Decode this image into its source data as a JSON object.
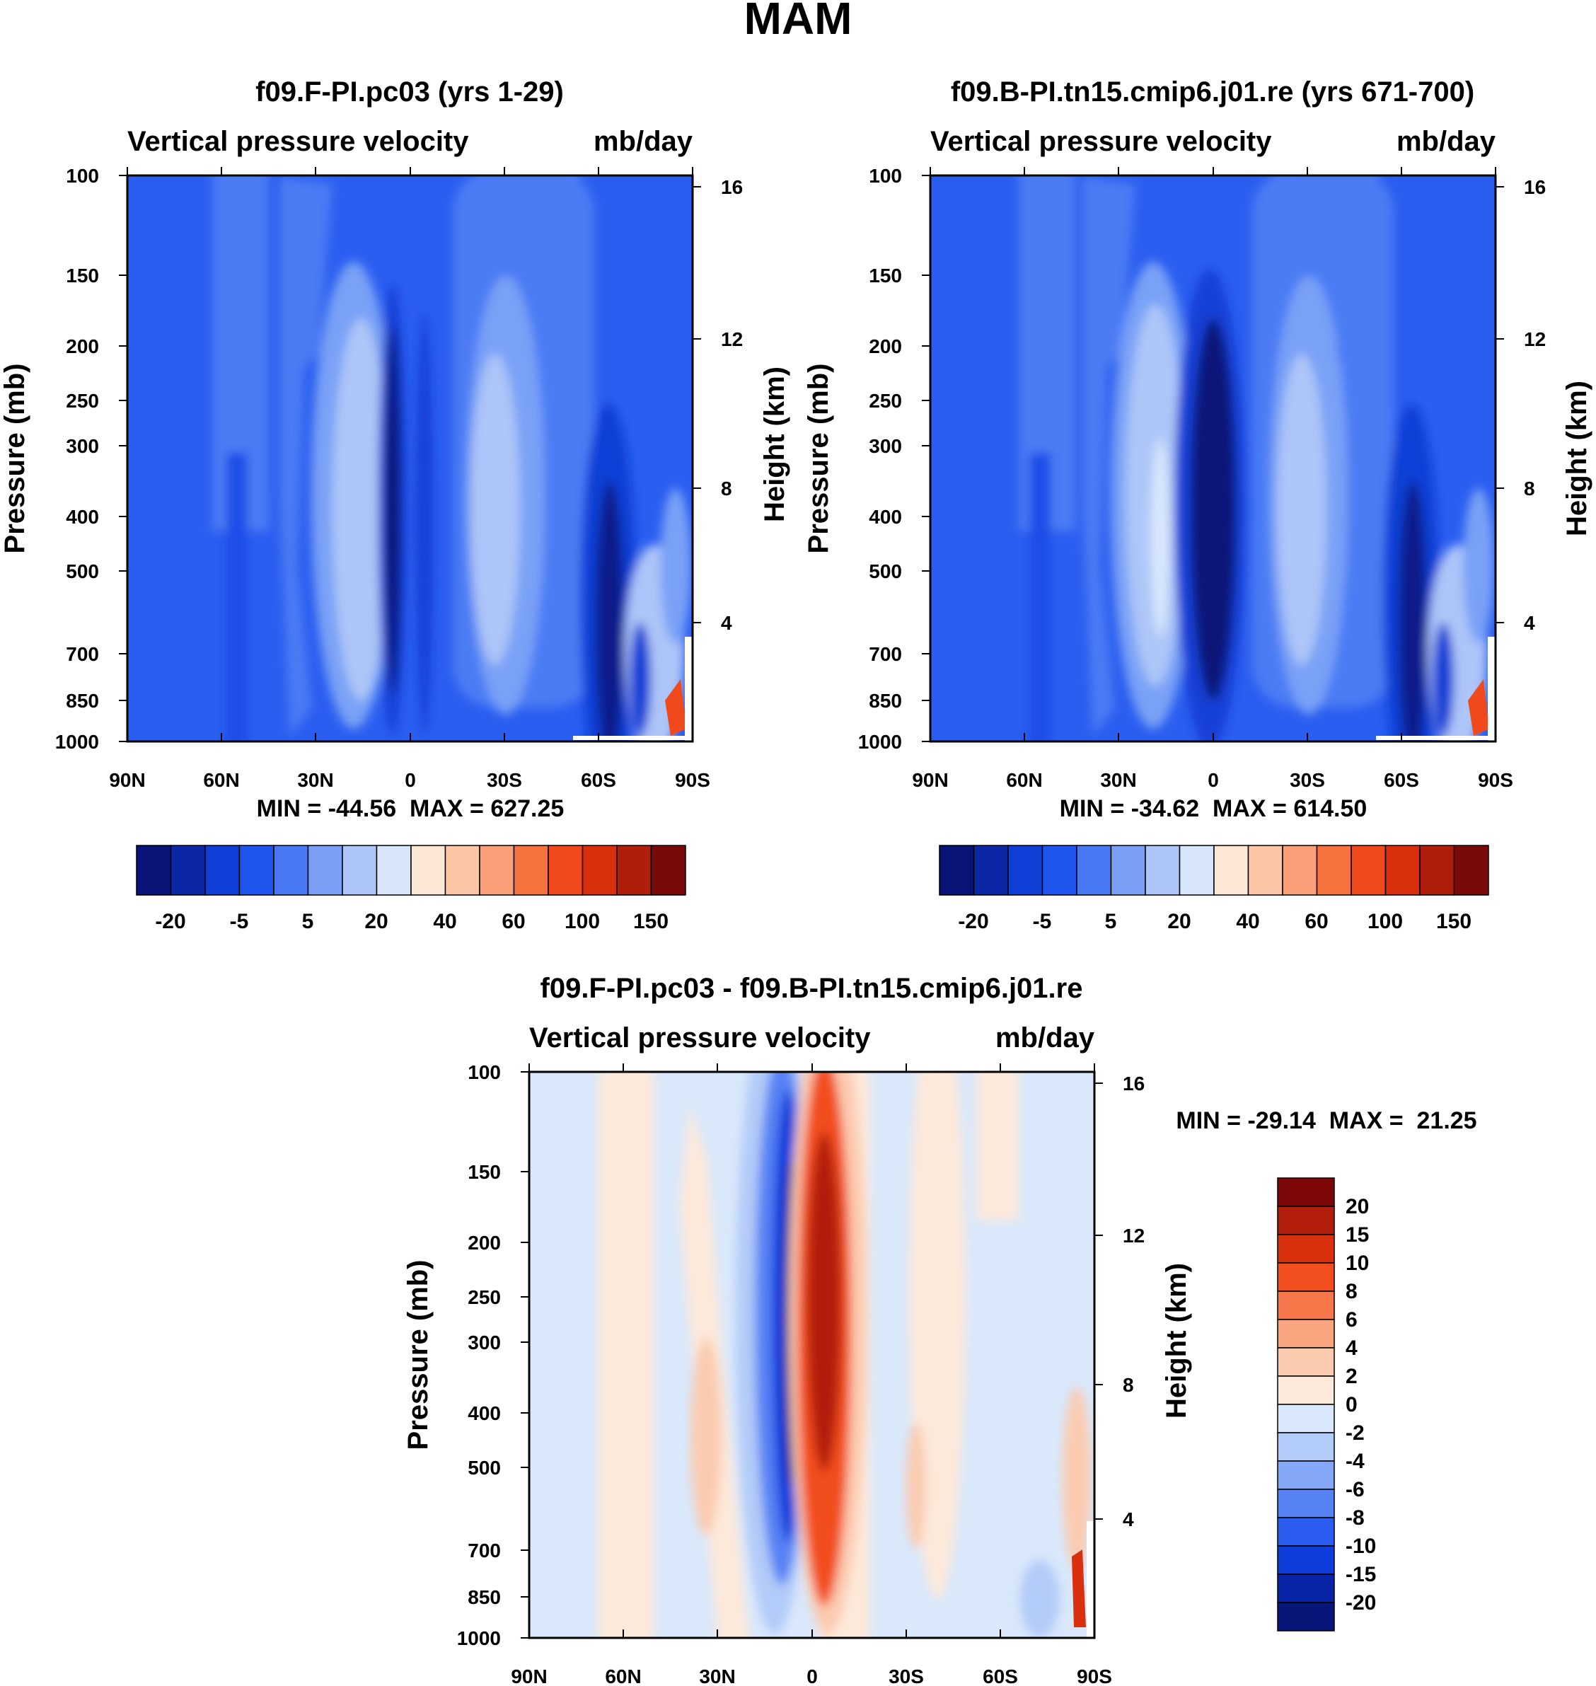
{
  "page_title": "MAM",
  "chart_data": [
    {
      "type": "contour",
      "title": "f09.F-PI.pc03 (yrs 1-29)",
      "left_label": "Vertical pressure velocity",
      "right_label": "mb/day",
      "ylabel": "Pressure (mb)",
      "ylabel_right": "Height (km)",
      "x_ticks": [
        "90N",
        "60N",
        "30N",
        "0",
        "30S",
        "60S",
        "90S"
      ],
      "y_ticks": [
        100,
        150,
        200,
        250,
        300,
        400,
        500,
        700,
        850,
        1000
      ],
      "height_ticks": [
        16,
        12,
        8,
        4
      ],
      "ylim": [
        1000,
        100
      ],
      "stats": "MIN = -44.56  MAX = 627.25",
      "colorbar_levels": [
        "-20",
        "-5",
        "5",
        "20",
        "40",
        "60",
        "100",
        "150"
      ],
      "colorbar_colors": [
        "#0a1378",
        "#0b27a6",
        "#0f3fd6",
        "#1e55ef",
        "#4878f4",
        "#7aa0f6",
        "#adc5f8",
        "#d7e6fb",
        "#fde7d6",
        "#fbc6a6",
        "#f9a07a",
        "#f67340",
        "#f04a1c",
        "#d92f0d",
        "#b01d0a",
        "#7a0a0a"
      ]
    },
    {
      "type": "contour",
      "title": "f09.B-PI.tn15.cmip6.j01.re (yrs 671-700)",
      "left_label": "Vertical pressure velocity",
      "right_label": "mb/day",
      "ylabel": "Pressure (mb)",
      "ylabel_right": "Height (km)",
      "x_ticks": [
        "90N",
        "60N",
        "30N",
        "0",
        "30S",
        "60S",
        "90S"
      ],
      "y_ticks": [
        100,
        150,
        200,
        250,
        300,
        400,
        500,
        700,
        850,
        1000
      ],
      "height_ticks": [
        16,
        12,
        8,
        4
      ],
      "ylim": [
        1000,
        100
      ],
      "stats": "MIN = -34.62  MAX = 614.50",
      "colorbar_levels": [
        "-20",
        "-5",
        "5",
        "20",
        "40",
        "60",
        "100",
        "150"
      ],
      "colorbar_colors": [
        "#0a1378",
        "#0b27a6",
        "#0f3fd6",
        "#1e55ef",
        "#4878f4",
        "#7aa0f6",
        "#adc5f8",
        "#d7e6fb",
        "#fde7d6",
        "#fbc6a6",
        "#f9a07a",
        "#f67340",
        "#f04a1c",
        "#d92f0d",
        "#b01d0a",
        "#7a0a0a"
      ]
    },
    {
      "type": "contour",
      "title": "f09.F-PI.pc03 - f09.B-PI.tn15.cmip6.j01.re",
      "left_label": "Vertical pressure velocity",
      "right_label": "mb/day",
      "ylabel": "Pressure (mb)",
      "ylabel_right": "Height (km)",
      "x_ticks": [
        "90N",
        "60N",
        "30N",
        "0",
        "30S",
        "60S",
        "90S"
      ],
      "y_ticks": [
        100,
        150,
        200,
        250,
        300,
        400,
        500,
        700,
        850,
        1000
      ],
      "height_ticks": [
        16,
        12,
        8,
        4
      ],
      "ylim": [
        1000,
        100
      ],
      "stats": "MIN = -29.14  MAX =  21.25",
      "colorbar_levels": [
        "20",
        "15",
        "10",
        "8",
        "6",
        "4",
        "2",
        "0",
        "-2",
        "-4",
        "-6",
        "-8",
        "-10",
        "-15",
        "-20"
      ],
      "colorbar_colors": [
        "#7d0606",
        "#b21e0b",
        "#d9310d",
        "#f24e1e",
        "#f6784a",
        "#f9a57f",
        "#fbcbb0",
        "#fde9da",
        "#d9e8fb",
        "#b3cbf8",
        "#85a8f6",
        "#5682f4",
        "#2a5cf0",
        "#0e3ddb",
        "#0925a7",
        "#071678"
      ]
    }
  ]
}
